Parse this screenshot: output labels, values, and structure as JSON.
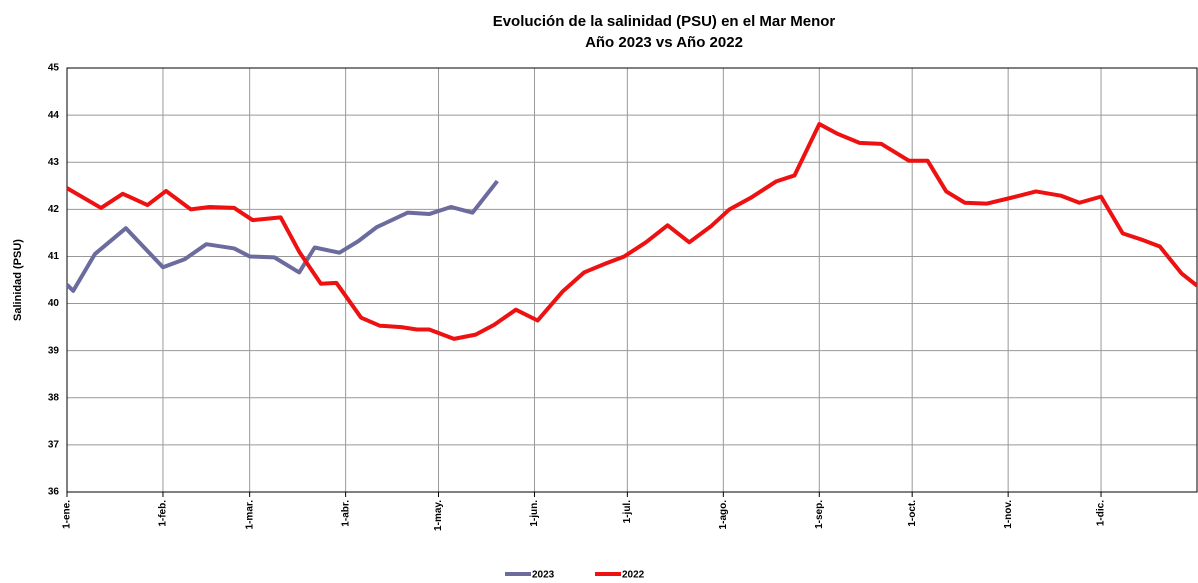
{
  "chart_data": {
    "type": "line",
    "title": "Evolución de la salinidad (PSU) en el Mar Menor",
    "subtitle": "Año 2023 vs Año 2022",
    "y_label": "Salinidad (PSU)",
    "xlim": [
      1,
      366
    ],
    "xticks": [
      {
        "value": 1,
        "label": "1-ene."
      },
      {
        "value": 32,
        "label": "1-feb."
      },
      {
        "value": 60,
        "label": "1-mar."
      },
      {
        "value": 91,
        "label": "1-abr."
      },
      {
        "value": 121,
        "label": "1-may."
      },
      {
        "value": 152,
        "label": "1-jun."
      },
      {
        "value": 182,
        "label": "1-jul."
      },
      {
        "value": 213,
        "label": "1-ago."
      },
      {
        "value": 244,
        "label": "1-sep."
      },
      {
        "value": 274,
        "label": "1-oct."
      },
      {
        "value": 305,
        "label": "1-nov."
      },
      {
        "value": 335,
        "label": "1-dic."
      }
    ],
    "ylim": [
      36,
      45
    ],
    "yticks": [
      36,
      37,
      38,
      39,
      40,
      41,
      42,
      43,
      44,
      45
    ],
    "grid": true,
    "legend": "bottom",
    "series": [
      {
        "name": "2023",
        "color": "#6b6b9e",
        "x": [
          1,
          3,
          10,
          20,
          32,
          39,
          46,
          55,
          60,
          68,
          76,
          81,
          89,
          95,
          101,
          111,
          118,
          125,
          132,
          140
        ],
        "values": [
          40.4,
          40.27,
          41.05,
          41.6,
          40.77,
          40.94,
          41.26,
          41.17,
          41.0,
          40.98,
          40.66,
          41.19,
          41.08,
          41.32,
          41.62,
          41.93,
          41.9,
          42.05,
          41.93,
          42.6
        ]
      },
      {
        "name": "2022",
        "color": "#ee1111",
        "x": [
          1,
          12,
          19,
          27,
          33,
          41,
          47,
          55,
          61,
          70,
          76,
          83,
          88,
          96,
          102,
          109,
          114,
          118,
          126,
          133,
          139,
          146,
          153,
          161,
          168,
          175,
          181,
          188,
          195,
          202,
          209,
          215,
          222,
          230,
          236,
          244,
          250,
          257,
          264,
          273,
          279,
          285,
          291,
          298,
          305,
          314,
          322,
          328,
          335,
          342,
          348,
          354,
          361,
          366
        ],
        "values": [
          42.45,
          42.03,
          42.33,
          42.09,
          42.39,
          42.0,
          42.05,
          42.03,
          41.77,
          41.83,
          41.1,
          40.42,
          40.44,
          39.7,
          39.53,
          39.5,
          39.45,
          39.45,
          39.25,
          39.34,
          39.55,
          39.87,
          39.64,
          40.25,
          40.66,
          40.85,
          41.0,
          41.3,
          41.66,
          41.3,
          41.64,
          42.0,
          42.25,
          42.59,
          42.72,
          43.81,
          43.6,
          43.41,
          43.39,
          43.03,
          43.03,
          42.38,
          42.14,
          42.12,
          42.23,
          42.38,
          42.29,
          42.14,
          42.27,
          41.49,
          41.36,
          41.21,
          40.64,
          40.38
        ]
      }
    ]
  }
}
